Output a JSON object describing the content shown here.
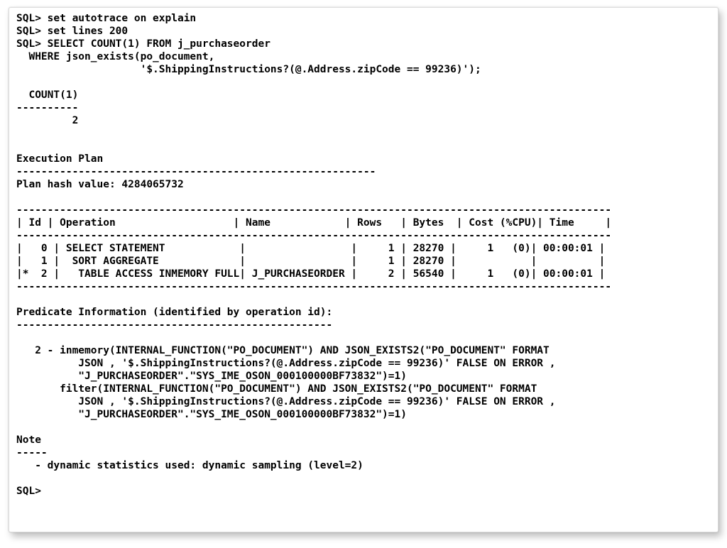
{
  "terminal": {
    "font_family": "Menlo, Consolas, monospace",
    "font_size_pt": 11,
    "font_weight": "bold",
    "text_color": "#000000",
    "background_color": "#ffffff",
    "border_color": "#dcdcdc",
    "shadow": "4px 6px 10px rgba(0,0,0,0.25)",
    "prompt": "SQL>",
    "commands": [
      "set autotrace on explain",
      "set lines 200",
      "SELECT COUNT(1) FROM j_purchaseorder",
      "  WHERE json_exists(po_document,",
      "                    '$.ShippingInstructions?(@.Address.zipCode == 99236)');"
    ],
    "result": {
      "column_header": "COUNT(1)",
      "divider": "----------",
      "value": "2"
    },
    "execution_plan": {
      "title": "Execution Plan",
      "title_divider": "----------------------------------------------------------",
      "plan_hash_label": "Plan hash value:",
      "plan_hash_value": "4284065732",
      "table_border": "------------------------------------------------------------------------------------------------",
      "columns": [
        "Id",
        "Operation",
        "Name",
        "Rows",
        "Bytes",
        "Cost (%CPU)",
        "Time"
      ],
      "rows": [
        {
          "mark": " ",
          "id": "0",
          "operation": "SELECT STATEMENT",
          "name": "",
          "rows": "1",
          "bytes": "28270",
          "cost": "1",
          "cpu": "(0)",
          "time": "00:00:01"
        },
        {
          "mark": " ",
          "id": "1",
          "operation": " SORT AGGREGATE",
          "name": "",
          "rows": "1",
          "bytes": "28270",
          "cost": "",
          "cpu": "",
          "time": ""
        },
        {
          "mark": "*",
          "id": "2",
          "operation": "  TABLE ACCESS INMEMORY FULL",
          "name": "J_PURCHASEORDER",
          "rows": "2",
          "bytes": "56540",
          "cost": "1",
          "cpu": "(0)",
          "time": "00:00:01"
        }
      ]
    },
    "predicate": {
      "title": "Predicate Information (identified by operation id):",
      "divider": "---------------------------------------------------",
      "lines": [
        "   2 - inmemory(INTERNAL_FUNCTION(\"PO_DOCUMENT\") AND JSON_EXISTS2(\"PO_DOCUMENT\" FORMAT",
        "          JSON , '$.ShippingInstructions?(@.Address.zipCode == 99236)' FALSE ON ERROR ,",
        "          \"J_PURCHASEORDER\".\"SYS_IME_OSON_000100000BF73832\")=1)",
        "       filter(INTERNAL_FUNCTION(\"PO_DOCUMENT\") AND JSON_EXISTS2(\"PO_DOCUMENT\" FORMAT",
        "          JSON , '$.ShippingInstructions?(@.Address.zipCode == 99236)' FALSE ON ERROR ,",
        "          \"J_PURCHASEORDER\".\"SYS_IME_OSON_000100000BF73832\")=1)"
      ]
    },
    "note": {
      "title": "Note",
      "divider": "-----",
      "lines": [
        "   - dynamic statistics used: dynamic sampling (level=2)"
      ]
    }
  }
}
